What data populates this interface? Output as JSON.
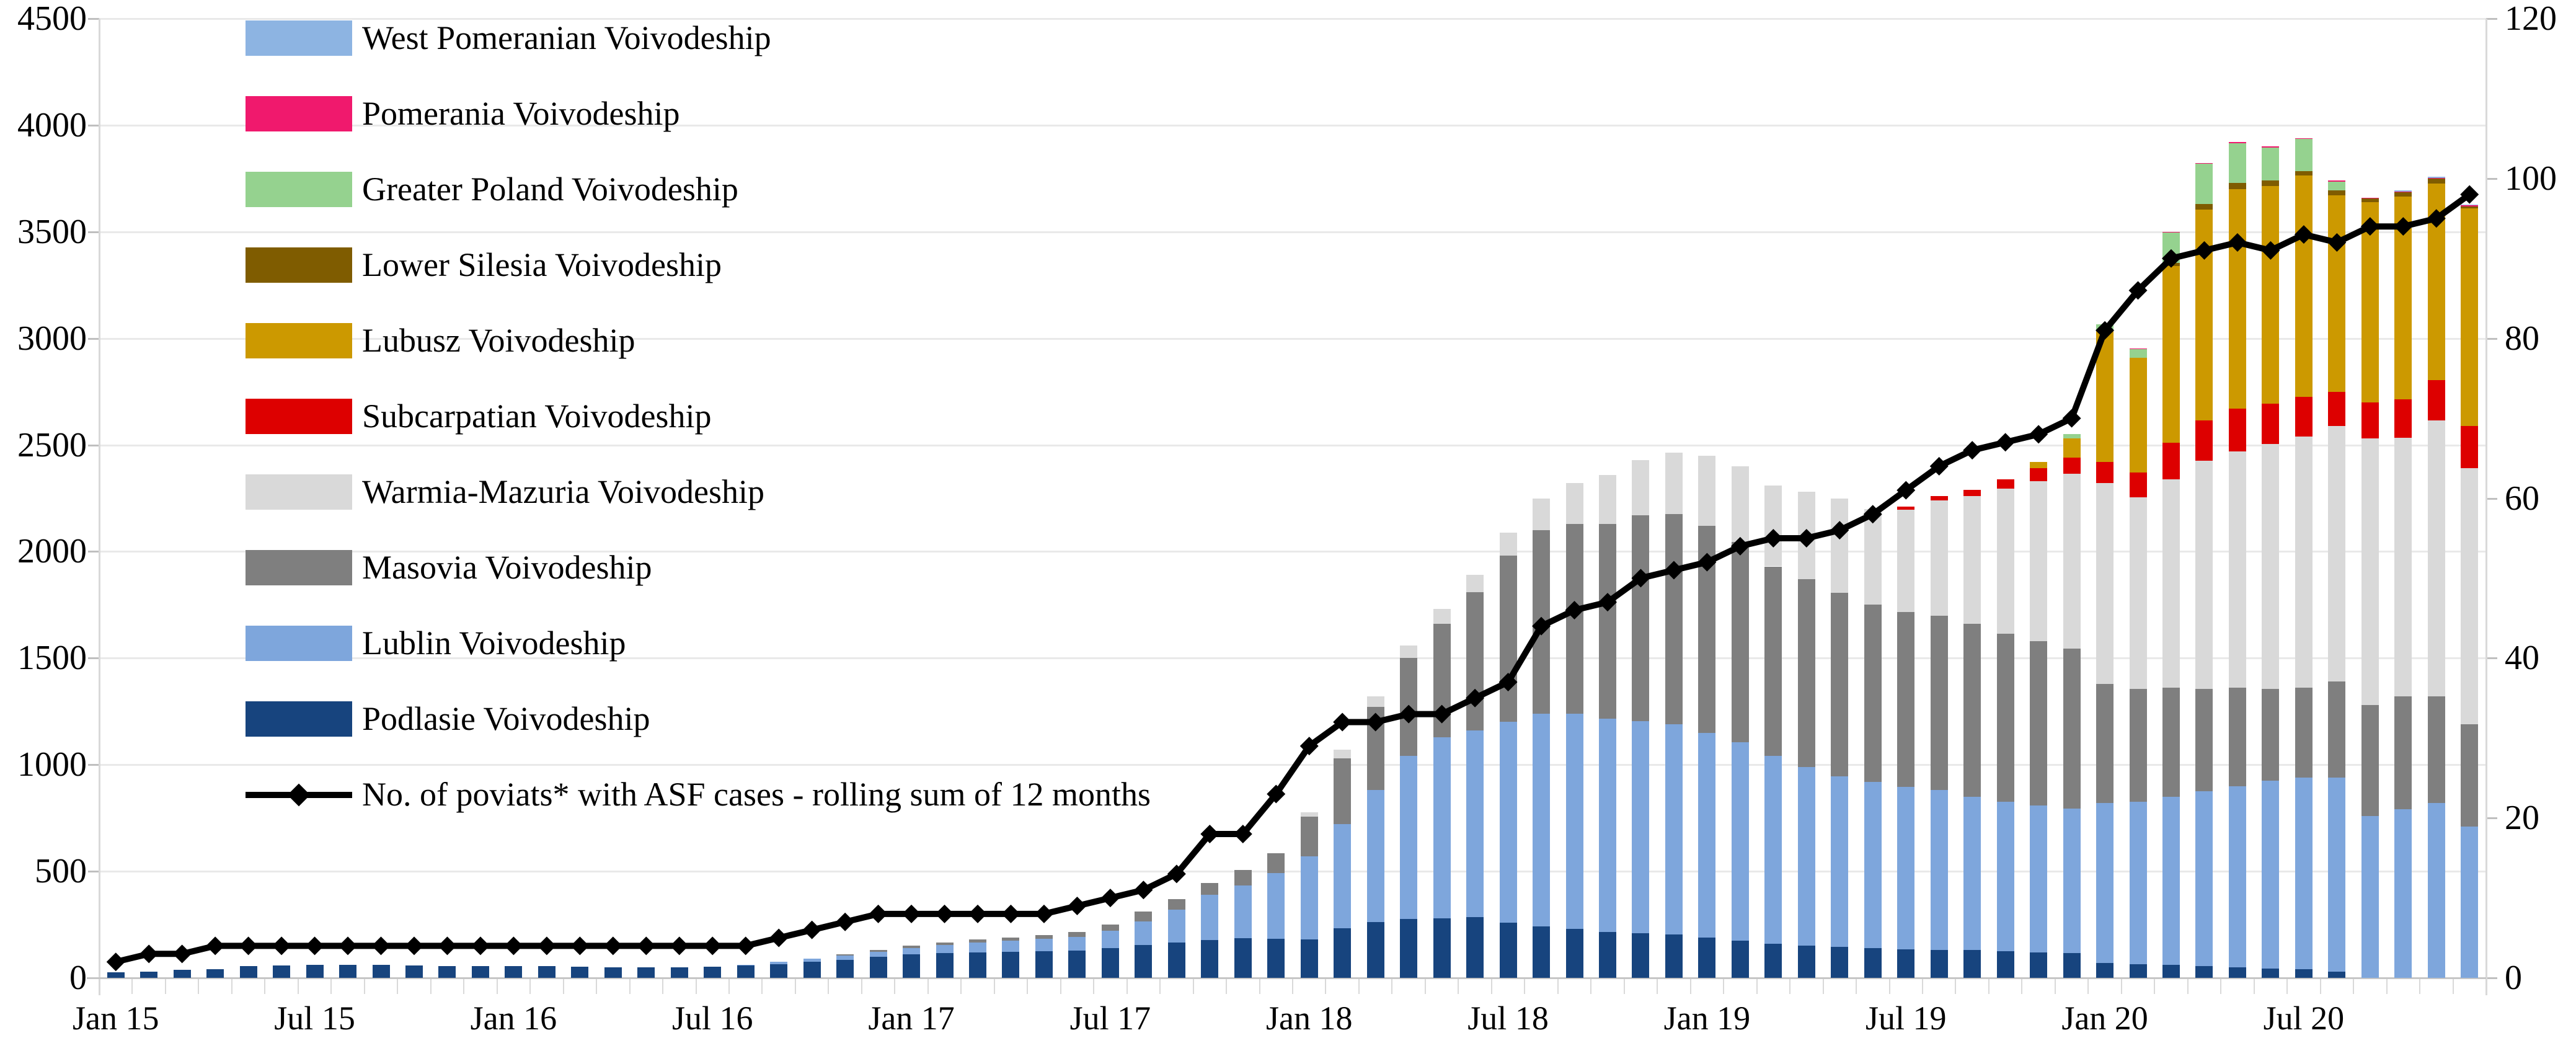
{
  "chart_data": {
    "type": "stacked-bar-line",
    "title": "",
    "left_axis": {
      "min": 0,
      "max": 4500,
      "step": 500
    },
    "right_axis": {
      "min": 0,
      "max": 120,
      "step": 20
    },
    "grid": true,
    "legend_position": "overlay-top-left",
    "months": [
      "Jan 15",
      "Feb 15",
      "Mar 15",
      "Apr 15",
      "May 15",
      "Jun 15",
      "Jul 15",
      "Aug 15",
      "Sep 15",
      "Oct 15",
      "Nov 15",
      "Dec 15",
      "Jan 16",
      "Feb 16",
      "Mar 16",
      "Apr 16",
      "May 16",
      "Jun 16",
      "Jul 16",
      "Aug 16",
      "Sep 16",
      "Oct 16",
      "Nov 16",
      "Dec 16",
      "Jan 17",
      "Feb 17",
      "Mar 17",
      "Apr 17",
      "May 17",
      "Jun 17",
      "Jul 17",
      "Aug 17",
      "Sep 17",
      "Oct 17",
      "Nov 17",
      "Dec 17",
      "Jan 18",
      "Feb 18",
      "Mar 18",
      "Apr 18",
      "May 18",
      "Jun 18",
      "Jul 18",
      "Aug 18",
      "Sep 18",
      "Oct 18",
      "Nov 18",
      "Dec 18",
      "Jan 19",
      "Feb 19",
      "Mar 19",
      "Apr 19",
      "May 19",
      "Jun 19",
      "Jul 19",
      "Aug 19",
      "Sep 19",
      "Oct 19",
      "Nov 19",
      "Dec 19",
      "Jan 20",
      "Feb 20",
      "Mar 20",
      "Apr 20",
      "May 20",
      "Jun 20",
      "Jul 20",
      "Aug 20",
      "Sep 20",
      "Oct 20",
      "Nov 20",
      "Dec 20"
    ],
    "x_tick_indices": [
      0,
      6,
      12,
      18,
      24,
      30,
      36,
      42,
      48,
      54,
      60,
      66
    ],
    "x_tick_labels": [
      "Jan 15",
      "Jul 15",
      "Jan 16",
      "Jul 16",
      "Jan 17",
      "Jul 17",
      "Jan 18",
      "Jul 18",
      "Jan 19",
      "Jul 19",
      "Jan 20",
      "Jul 20"
    ],
    "series": [
      {
        "key": "podlasie",
        "name": "Podlasie Voivodeship",
        "color": "#17447E",
        "values": [
          26,
          30,
          38,
          40,
          55,
          58,
          60,
          60,
          60,
          58,
          56,
          55,
          55,
          54,
          52,
          50,
          48,
          48,
          52,
          57,
          65,
          75,
          85,
          100,
          110,
          115,
          120,
          122,
          125,
          128,
          140,
          155,
          165,
          177,
          185,
          182,
          180,
          232,
          262,
          277,
          280,
          285,
          260,
          240,
          230,
          215,
          210,
          205,
          190,
          175,
          160,
          150,
          145,
          140,
          135,
          130,
          130,
          125,
          120,
          115,
          70,
          65,
          60,
          55,
          50,
          45,
          40,
          30,
          0,
          0,
          0,
          0
        ]
      },
      {
        "key": "lublin",
        "name": "Lublin Voivodeship",
        "color": "#7EA6DC",
        "values": [
          0,
          0,
          0,
          0,
          0,
          0,
          0,
          0,
          0,
          0,
          0,
          0,
          0,
          0,
          0,
          0,
          0,
          0,
          0,
          5,
          10,
          15,
          20,
          22,
          30,
          38,
          45,
          52,
          57,
          64,
          80,
          110,
          155,
          212,
          248,
          309,
          391,
          489,
          618,
          764,
          850,
          875,
          940,
          1000,
          1010,
          1000,
          995,
          985,
          960,
          930,
          880,
          840,
          800,
          780,
          760,
          750,
          720,
          700,
          690,
          680,
          750,
          760,
          790,
          820,
          850,
          880,
          900,
          910,
          760,
          790,
          820,
          710
        ]
      },
      {
        "key": "masovia",
        "name": "Masovia Voivodeship",
        "color": "#7F7F7F",
        "values": [
          0,
          0,
          0,
          0,
          0,
          0,
          0,
          0,
          0,
          0,
          0,
          0,
          0,
          0,
          0,
          0,
          0,
          0,
          0,
          0,
          0,
          0,
          5,
          8,
          10,
          12,
          15,
          16,
          18,
          23,
          30,
          45,
          50,
          56,
          73,
          95,
          186,
          309,
          391,
          459,
          530,
          650,
          780,
          860,
          890,
          915,
          965,
          985,
          970,
          940,
          890,
          880,
          860,
          830,
          820,
          820,
          810,
          790,
          770,
          750,
          560,
          530,
          510,
          480,
          460,
          430,
          420,
          450,
          520,
          530,
          500,
          480
        ]
      },
      {
        "key": "warmia",
        "name": "Warmia-Mazuria Voivodeship",
        "color": "#D9D9D9",
        "values": [
          0,
          0,
          0,
          0,
          0,
          0,
          0,
          0,
          0,
          0,
          0,
          0,
          0,
          0,
          0,
          0,
          0,
          0,
          0,
          0,
          0,
          0,
          0,
          0,
          0,
          0,
          0,
          0,
          0,
          0,
          0,
          0,
          0,
          0,
          0,
          0,
          20,
          41,
          50,
          60,
          70,
          80,
          110,
          150,
          190,
          230,
          260,
          290,
          330,
          355,
          380,
          410,
          445,
          450,
          480,
          540,
          600,
          680,
          750,
          820,
          940,
          900,
          980,
          1070,
          1110,
          1150,
          1180,
          1200,
          1250,
          1215,
          1295,
          1200
        ]
      },
      {
        "key": "subcarpatian",
        "name": "Subcarpatian Voivodeship",
        "color": "#DD0000",
        "values": [
          0,
          0,
          0,
          0,
          0,
          0,
          0,
          0,
          0,
          0,
          0,
          0,
          0,
          0,
          0,
          0,
          0,
          0,
          0,
          0,
          0,
          0,
          0,
          0,
          0,
          0,
          0,
          0,
          0,
          0,
          0,
          0,
          0,
          0,
          0,
          0,
          0,
          0,
          0,
          0,
          0,
          0,
          0,
          0,
          0,
          0,
          0,
          0,
          0,
          0,
          0,
          0,
          0,
          0,
          15,
          20,
          30,
          45,
          60,
          75,
          100,
          115,
          170,
          190,
          200,
          190,
          185,
          160,
          170,
          180,
          190,
          200
        ]
      },
      {
        "key": "lubusz",
        "name": "Lubusz Voivodeship",
        "color": "#CC9900",
        "values": [
          0,
          0,
          0,
          0,
          0,
          0,
          0,
          0,
          0,
          0,
          0,
          0,
          0,
          0,
          0,
          0,
          0,
          0,
          0,
          0,
          0,
          0,
          0,
          0,
          0,
          0,
          0,
          0,
          0,
          0,
          0,
          0,
          0,
          0,
          0,
          0,
          0,
          0,
          0,
          0,
          0,
          0,
          0,
          0,
          0,
          0,
          0,
          0,
          0,
          0,
          0,
          0,
          0,
          0,
          0,
          0,
          0,
          0,
          30,
          90,
          615,
          540,
          830,
          990,
          1030,
          1020,
          1040,
          920,
          940,
          950,
          920,
          1020
        ]
      },
      {
        "key": "lower_silesia",
        "name": "Lower Silesia Voivodeship",
        "color": "#7F5C00",
        "values": [
          0,
          0,
          0,
          0,
          0,
          0,
          0,
          0,
          0,
          0,
          0,
          0,
          0,
          0,
          0,
          0,
          0,
          0,
          0,
          0,
          0,
          0,
          0,
          0,
          0,
          0,
          0,
          0,
          0,
          0,
          0,
          0,
          0,
          0,
          0,
          0,
          0,
          0,
          0,
          0,
          0,
          0,
          0,
          0,
          0,
          0,
          0,
          0,
          0,
          0,
          0,
          0,
          0,
          0,
          0,
          0,
          0,
          0,
          0,
          0,
          0,
          0,
          15,
          25,
          30,
          25,
          20,
          25,
          15,
          20,
          25,
          10
        ]
      },
      {
        "key": "greater_poland",
        "name": "Greater Poland Voivodeship",
        "color": "#95D28F",
        "values": [
          0,
          0,
          0,
          0,
          0,
          0,
          0,
          0,
          0,
          0,
          0,
          0,
          0,
          0,
          0,
          0,
          0,
          0,
          0,
          0,
          0,
          0,
          0,
          0,
          0,
          0,
          0,
          0,
          0,
          0,
          0,
          0,
          0,
          0,
          0,
          0,
          0,
          0,
          0,
          0,
          0,
          0,
          0,
          0,
          0,
          0,
          0,
          0,
          0,
          0,
          0,
          0,
          0,
          0,
          0,
          0,
          0,
          0,
          0,
          20,
          30,
          40,
          140,
          190,
          185,
          155,
          150,
          40,
          0,
          0,
          0,
          0
        ]
      },
      {
        "key": "pomerania",
        "name": "Pomerania Voivodeship",
        "color": "#F0196D",
        "values": [
          0,
          0,
          0,
          0,
          0,
          0,
          0,
          0,
          0,
          0,
          0,
          0,
          0,
          0,
          0,
          0,
          0,
          0,
          0,
          0,
          0,
          0,
          0,
          0,
          0,
          0,
          0,
          0,
          0,
          0,
          0,
          0,
          0,
          0,
          0,
          0,
          0,
          0,
          0,
          0,
          0,
          0,
          0,
          0,
          0,
          0,
          0,
          0,
          0,
          0,
          0,
          0,
          0,
          0,
          0,
          0,
          0,
          0,
          0,
          0,
          0,
          3,
          3,
          3,
          5,
          5,
          5,
          5,
          3,
          3,
          3,
          3
        ]
      },
      {
        "key": "west_pomeranian",
        "name": "West Pomeranian Voivodeship",
        "color": "#8DB4E2",
        "values": [
          0,
          0,
          0,
          0,
          0,
          0,
          0,
          0,
          0,
          0,
          0,
          0,
          0,
          0,
          0,
          0,
          0,
          0,
          0,
          0,
          0,
          0,
          0,
          0,
          0,
          0,
          0,
          0,
          0,
          0,
          0,
          0,
          0,
          0,
          0,
          0,
          0,
          0,
          0,
          0,
          0,
          0,
          0,
          0,
          0,
          0,
          0,
          0,
          0,
          0,
          0,
          0,
          0,
          0,
          0,
          0,
          0,
          0,
          0,
          0,
          0,
          0,
          0,
          0,
          0,
          0,
          0,
          0,
          0,
          5,
          5,
          5
        ]
      }
    ],
    "line_series": {
      "name": "No. of poviats* with ASF cases - rolling sum of 12 months",
      "color": "#000000",
      "axis": "right",
      "marker": "diamond",
      "values": [
        2,
        3,
        3,
        4,
        4,
        4,
        4,
        4,
        4,
        4,
        4,
        4,
        4,
        4,
        4,
        4,
        4,
        4,
        4,
        4,
        5,
        6,
        7,
        8,
        8,
        8,
        8,
        8,
        8,
        9,
        10,
        11,
        13,
        18,
        18,
        23,
        29,
        32,
        32,
        33,
        33,
        35,
        37,
        44,
        46,
        47,
        50,
        51,
        52,
        54,
        55,
        55,
        56,
        58,
        61,
        64,
        66,
        67,
        68,
        70,
        81,
        86,
        90,
        91,
        92,
        91,
        93,
        92,
        94,
        94,
        95,
        98
      ]
    }
  },
  "legend": {
    "items": [
      {
        "label": "West Pomeranian Voivodeship",
        "color": "#8DB4E2"
      },
      {
        "label": "Pomerania Voivodeship",
        "color": "#F0196D"
      },
      {
        "label": "Greater Poland Voivodeship",
        "color": "#95D28F"
      },
      {
        "label": "Lower Silesia Voivodeship",
        "color": "#7F5C00"
      },
      {
        "label": "Lubusz Voivodeship",
        "color": "#CC9900"
      },
      {
        "label": "Subcarpatian Voivodeship",
        "color": "#DD0000"
      },
      {
        "label": "Warmia-Mazuria Voivodeship",
        "color": "#D9D9D9"
      },
      {
        "label": "Masovia Voivodeship",
        "color": "#7F7F7F"
      },
      {
        "label": "Lublin Voivodeship",
        "color": "#7EA6DC"
      },
      {
        "label": "Podlasie Voivodeship",
        "color": "#17447E"
      }
    ],
    "line_item": {
      "label": "No. of poviats* with ASF cases - rolling sum of 12 months",
      "color": "#000000"
    }
  },
  "colors": {
    "gridline": "#E9E9E9",
    "axis_line": "#C6C6C6",
    "axis_tick": "#BFBFBF",
    "minor_tick": "#D9D9D9",
    "text": "#000000"
  }
}
